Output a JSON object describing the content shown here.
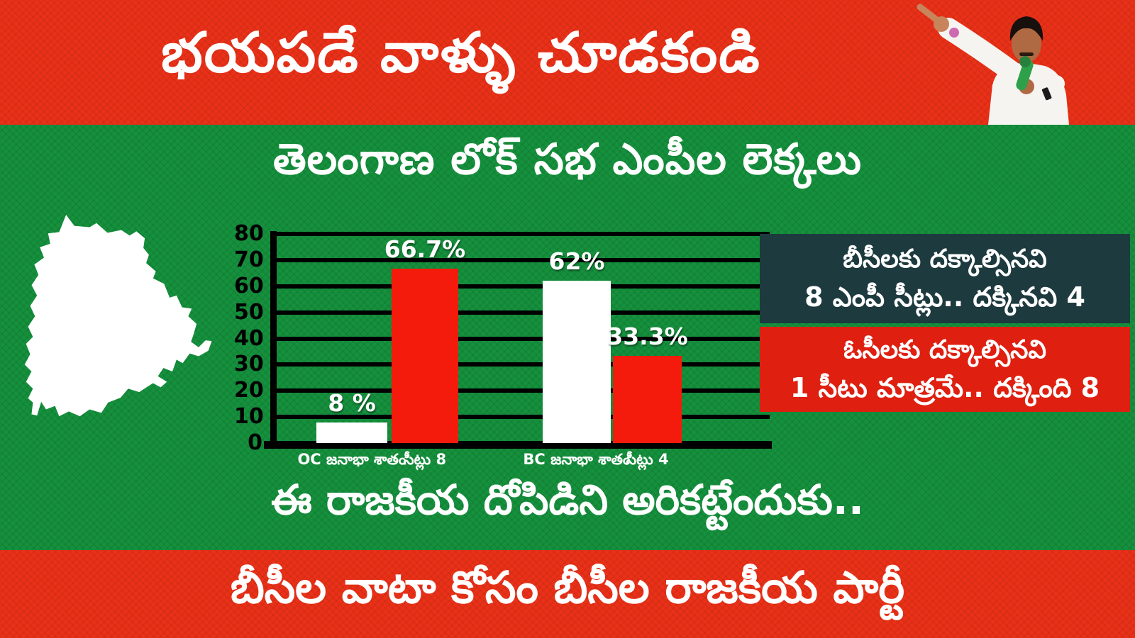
{
  "top_banner": {
    "title": "భయపడే వాళ్ళు చూడకండి"
  },
  "header": {
    "section_title": "తెలంగాణ లోక్ సభ ఎంపీల లెక్కలు"
  },
  "chart_data": {
    "type": "bar",
    "title": "తెలంగాణ లోక్ సభ ఎంపీల లెక్కలు",
    "categories": [
      "OC జనాభా శాతం",
      "సీట్లు 8",
      "BC జనాభా శాతం",
      "సీట్లు 4"
    ],
    "values": [
      8,
      66.7,
      62,
      33.3
    ],
    "data_labels": [
      "8 %",
      "66.7%",
      "62%",
      "33.3%"
    ],
    "bar_colors": [
      "#ffffff",
      "#f51b0c",
      "#ffffff",
      "#f51b0c"
    ],
    "xlabel": "",
    "ylabel": "",
    "ylim": [
      0,
      80
    ],
    "yticks": [
      0,
      10,
      20,
      30,
      40,
      50,
      60,
      70,
      80
    ],
    "grid": true,
    "legend": "none",
    "plot_bg": "#15913d",
    "axis_color": "#000000",
    "label_color": "#ffffff"
  },
  "info_boxes": {
    "bc": {
      "line1": "బీసీలకు దక్కాల్సినవి",
      "line2": "8 ఎంపీ సీట్లు.. దక్కినవి 4",
      "bg": "#1d3a3e"
    },
    "oc": {
      "line1": "ఓసీలకు దక్కాల్సినవి",
      "line2": "1 సీటు మాత్రమే.. దక్కింది 8",
      "bg": "#df1f10"
    }
  },
  "conclusion": {
    "text": "ఈ రాజకీయ దోపిడిని అరికట్టేందుకు.."
  },
  "bottom_banner": {
    "title": "బీసీల వాటా కోసం బీసీల రాజకీయ పార్టీ"
  },
  "icons": {
    "map": "telangana-map-silhouette",
    "photo": "speaker-pointing-photo"
  },
  "colors": {
    "banner_red": "#ea3118",
    "green": "#15913d",
    "bar_red": "#f51b0c",
    "bar_white": "#ffffff",
    "dark_box": "#1d3a3e",
    "red_box": "#df1f10",
    "text_white": "#ffffff",
    "axis_black": "#000000"
  }
}
